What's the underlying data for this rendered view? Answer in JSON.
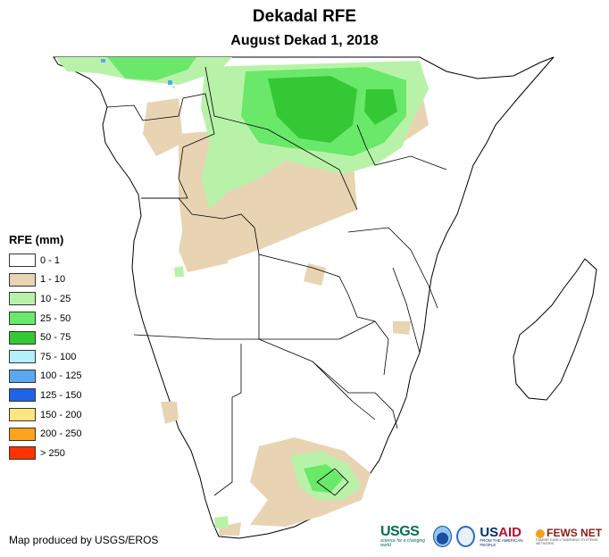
{
  "header": {
    "title": "Dekadal RFE",
    "subtitle": "August Dekad 1, 2018"
  },
  "legend": {
    "title": "RFE (mm)",
    "items": [
      {
        "label": "0 - 1",
        "color": "#ffffff"
      },
      {
        "label": "1 - 10",
        "color": "#e8d4b3"
      },
      {
        "label": "10 - 25",
        "color": "#b8f2a8"
      },
      {
        "label": "25 - 50",
        "color": "#6ae86a"
      },
      {
        "label": "50 - 75",
        "color": "#34c934"
      },
      {
        "label": "75 - 100",
        "color": "#b2f0fa"
      },
      {
        "label": "100 - 125",
        "color": "#5aa8f0"
      },
      {
        "label": "125 - 150",
        "color": "#1f63e8"
      },
      {
        "label": "150 - 200",
        "color": "#ffe680"
      },
      {
        "label": "200 - 250",
        "color": "#ffa31a"
      },
      {
        "label": "> 250",
        "color": "#ff3300"
      }
    ]
  },
  "footer": {
    "credit": "Map produced by USGS/EROS"
  },
  "logos": {
    "usgs": "USGS",
    "usgs_tagline": "science for a changing world",
    "usaid_us": "US",
    "usaid_aid": "AID",
    "usaid_tagline": "FROM THE AMERICAN PEOPLE",
    "fews": "FEWS NET",
    "fews_tagline": "FAMINE EARLY WARNING SYSTEMS NETWORK"
  }
}
